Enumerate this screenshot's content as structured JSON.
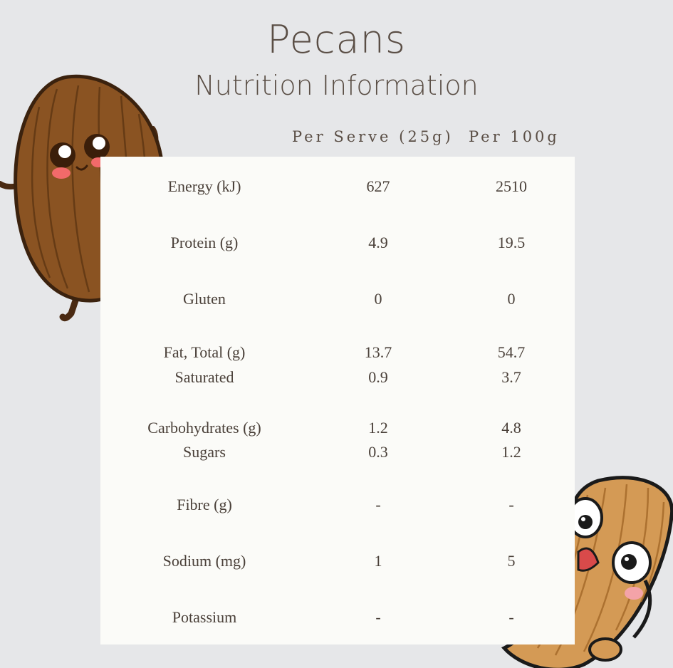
{
  "title": "Pecans",
  "subtitle": "Nutrition Information",
  "columns": {
    "per_serve": "Per Serve (25g)",
    "per_100g": "Per 100g"
  },
  "rows": [
    {
      "label": "Energy (kJ)",
      "per_serve": "627",
      "per_100g": "2510"
    },
    {
      "label": "Protein (g)",
      "per_serve": "4.9",
      "per_100g": "19.5"
    },
    {
      "label": "Gluten",
      "per_serve": "0",
      "per_100g": "0"
    },
    {
      "label": "Fat, Total (g)",
      "per_serve": "13.7",
      "per_100g": "54.7"
    },
    {
      "label": "Saturated",
      "per_serve": "0.9",
      "per_100g": "3.7"
    },
    {
      "label": "Carbohydrates (g)",
      "per_serve": "1.2",
      "per_100g": "4.8"
    },
    {
      "label": "Sugars",
      "per_serve": "0.3",
      "per_100g": "1.2"
    },
    {
      "label": "Fibre (g)",
      "per_serve": "-",
      "per_100g": "-"
    },
    {
      "label": "Sodium (mg)",
      "per_serve": "1",
      "per_100g": "5"
    },
    {
      "label": "Potassium",
      "per_serve": "-",
      "per_100g": "-"
    }
  ],
  "colors": {
    "background": "#e6e7e9",
    "panel": "#fbfbf8",
    "text": "#4a4039"
  }
}
